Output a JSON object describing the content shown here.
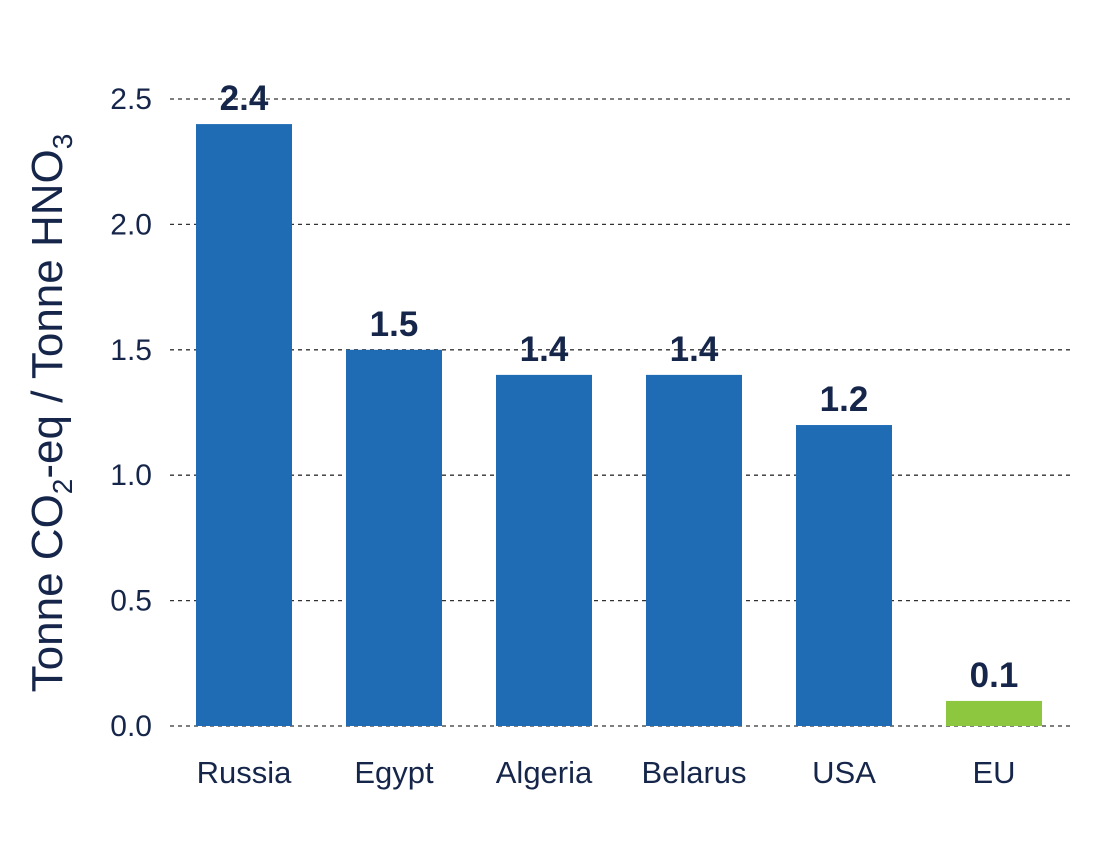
{
  "chart_data": {
    "type": "bar",
    "categories": [
      "Russia",
      "Egypt",
      "Algeria",
      "Belarus",
      "USA",
      "EU"
    ],
    "values": [
      2.4,
      1.5,
      1.4,
      1.4,
      1.2,
      0.1
    ],
    "value_labels": [
      "2.4",
      "1.5",
      "1.4",
      "1.4",
      "1.2",
      "0.1"
    ],
    "colors": [
      "#1f6cb5",
      "#1f6cb5",
      "#1f6cb5",
      "#1f6cb5",
      "#1f6cb5",
      "#8dc63f"
    ],
    "ylabel": {
      "part1": "Tonne CO",
      "sub1": "2",
      "part2": "-eq / Tonne HNO",
      "sub2": "3"
    },
    "yticks": [
      "0.0",
      "0.5",
      "1.0",
      "1.5",
      "2.0",
      "2.5"
    ],
    "ylim": [
      0,
      2.5
    ],
    "grid": true,
    "legend": "none"
  }
}
